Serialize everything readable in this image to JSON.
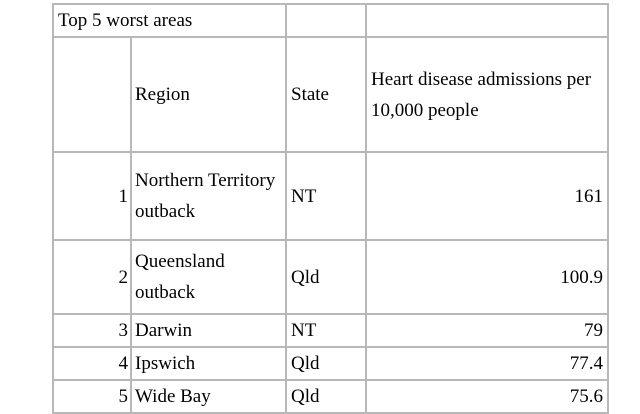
{
  "table": {
    "title": "Top 5 worst areas",
    "header": [
      "Region",
      "State",
      "Heart disease admissions per 10,000 people"
    ],
    "rows": [
      [
        1,
        "Northern Territory outback",
        "NT",
        161
      ],
      [
        2,
        "Queensland outback",
        "Qld",
        100.9
      ],
      [
        3,
        "Darwin",
        "NT",
        79
      ],
      [
        4,
        "Ipswich",
        "Qld",
        77.4
      ],
      [
        5,
        "Wide Bay",
        "Qld",
        75.6
      ]
    ]
  }
}
